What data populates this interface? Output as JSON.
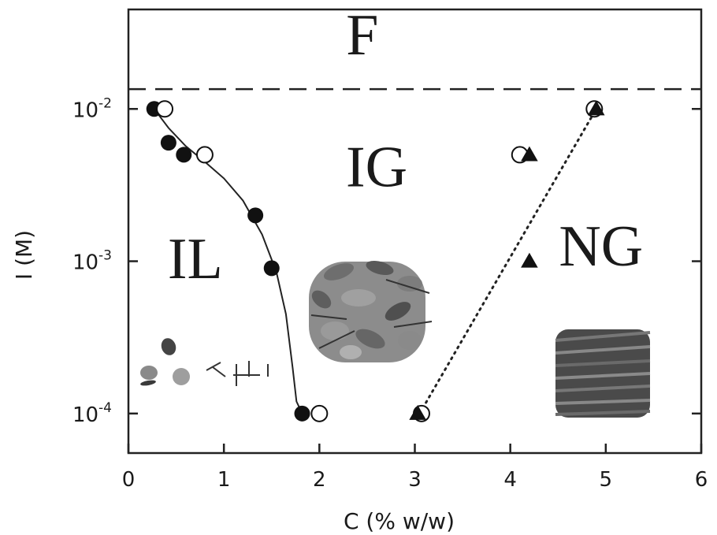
{
  "chart_data": {
    "type": "scatter",
    "xlabel": "C (% w/w)",
    "ylabel": "I (M)",
    "xlim": [
      0,
      6
    ],
    "ylim": [
      5.5e-05,
      0.045
    ],
    "yscale": "log",
    "grid": false,
    "x_ticks": [
      "0",
      "1",
      "2",
      "3",
      "4",
      "5",
      "6"
    ],
    "y_ticks": [
      {
        "value": 0.0001,
        "base": "10",
        "exp": "-4"
      },
      {
        "value": 0.001,
        "base": "10",
        "exp": "-3"
      },
      {
        "value": 0.01,
        "base": "10",
        "exp": "-2"
      }
    ],
    "region_labels": [
      {
        "text": "F",
        "x": 2.45,
        "y": 0.028
      },
      {
        "text": "IG",
        "x": 2.6,
        "y": 0.0038
      },
      {
        "text": "IL",
        "x": 0.7,
        "y": 0.00095
      },
      {
        "text": "NG",
        "x": 4.95,
        "y": 0.00115
      }
    ],
    "boundary_line": {
      "style": "dashed",
      "y": 0.0135
    },
    "series": [
      {
        "marker": "filled-circle",
        "points": [
          [
            0.27,
            0.01
          ],
          [
            0.42,
            0.006
          ],
          [
            0.58,
            0.005
          ],
          [
            1.33,
            0.002
          ],
          [
            1.5,
            0.0009
          ],
          [
            1.82,
            0.0001
          ]
        ]
      },
      {
        "marker": "open-circle",
        "points": [
          [
            0.38,
            0.01
          ],
          [
            0.8,
            0.005
          ],
          [
            2.0,
            0.0001
          ],
          [
            4.1,
            0.005
          ],
          [
            4.88,
            0.01
          ],
          [
            3.07,
            0.0001
          ]
        ]
      },
      {
        "marker": "filled-triangle",
        "points": [
          [
            4.2,
            0.005
          ],
          [
            4.2,
            0.001
          ],
          [
            3.03,
            0.0001
          ],
          [
            4.9,
            0.01
          ]
        ]
      }
    ],
    "curves": [
      {
        "style": "solid",
        "points": [
          [
            0.27,
            0.01
          ],
          [
            0.42,
            0.0075
          ],
          [
            0.6,
            0.0057
          ],
          [
            0.8,
            0.0045
          ],
          [
            1.0,
            0.0035
          ],
          [
            1.2,
            0.0025
          ],
          [
            1.4,
            0.0015
          ],
          [
            1.55,
            0.00085
          ],
          [
            1.65,
            0.00045
          ],
          [
            1.72,
            0.0002
          ],
          [
            1.76,
            0.00012
          ],
          [
            1.82,
            0.0001
          ]
        ]
      },
      {
        "style": "dotted",
        "points": [
          [
            3.05,
            0.0001
          ],
          [
            4.9,
            0.01
          ]
        ]
      }
    ]
  }
}
